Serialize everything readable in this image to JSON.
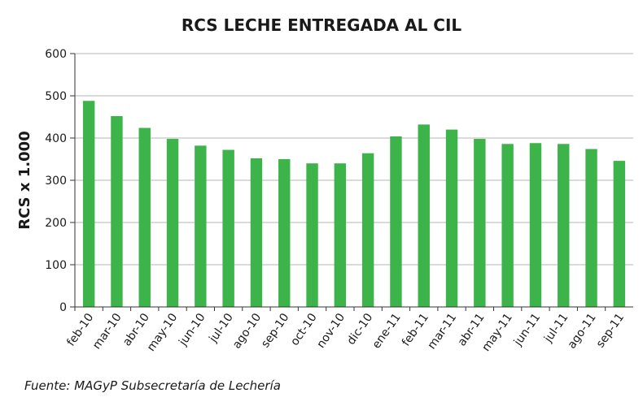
{
  "chart_data": {
    "type": "bar",
    "title": "RCS LECHE ENTREGADA AL CIL",
    "xlabel": "",
    "ylabel": "RCS x 1.000",
    "ylim": [
      0,
      600
    ],
    "yticks": [
      "0",
      "100",
      "200",
      "300",
      "400",
      "500",
      "600"
    ],
    "grid": true,
    "legend": "none",
    "bar_color": "#3cb44a",
    "categories": [
      "feb-10",
      "mar-10",
      "abr-10",
      "may-10",
      "jun-10",
      "jul-10",
      "ago-10",
      "sep-10",
      "oct-10",
      "nov-10",
      "dic-10",
      "ene-11",
      "feb-11",
      "mar-11",
      "abr-11",
      "may-11",
      "jun-11",
      "jul-11",
      "ago-11",
      "sep-11"
    ],
    "values": [
      488,
      452,
      424,
      398,
      382,
      372,
      352,
      350,
      340,
      340,
      364,
      404,
      432,
      420,
      398,
      386,
      388,
      386,
      374,
      346
    ]
  },
  "source_note": "Fuente: MAGyP Subsecretaría de Lechería"
}
